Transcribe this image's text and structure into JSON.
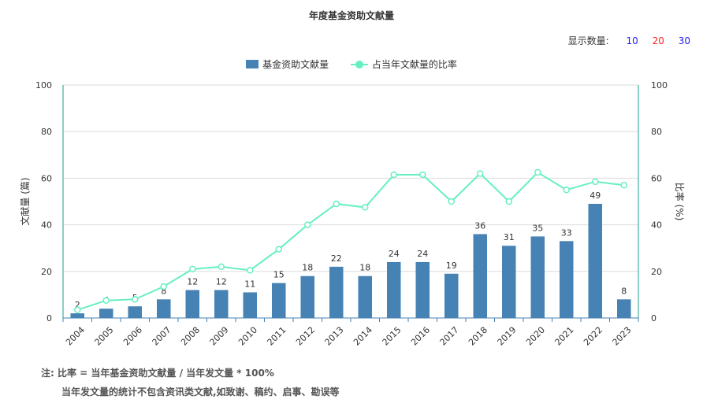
{
  "header": {
    "title": "年度基金资助文献量"
  },
  "display_count": {
    "label": "显示数量:",
    "options": [
      {
        "text": "10",
        "color": "#1a1aff"
      },
      {
        "text": "20",
        "color": "#ff2020"
      },
      {
        "text": "30",
        "color": "#1a1aff"
      }
    ]
  },
  "notes": {
    "line1": "注:  比率 = 当年基金资助文献量 / 当年发文量 * 100%",
    "line2": "当年发文量的统计不包含资讯类文献,如致谢、稿约、启事、勘误等"
  },
  "colors": {
    "bar": "#4682b4",
    "line": "#66f0c0",
    "axis_right": "#1aa38a",
    "axis_left": "#4682b4"
  },
  "chart_data": {
    "type": "bar",
    "categories": [
      "2004",
      "2005",
      "2006",
      "2007",
      "2008",
      "2009",
      "2010",
      "2011",
      "2012",
      "2013",
      "2014",
      "2015",
      "2016",
      "2017",
      "2018",
      "2019",
      "2020",
      "2021",
      "2022",
      "2023"
    ],
    "series": [
      {
        "name": "基金资助文献量",
        "type": "bar",
        "axis": "left",
        "values": [
          2,
          4,
          5,
          8,
          12,
          12,
          11,
          15,
          18,
          22,
          18,
          24,
          24,
          19,
          36,
          31,
          35,
          33,
          49,
          8
        ]
      },
      {
        "name": "占当年文献量的比率",
        "type": "line",
        "axis": "right",
        "values": [
          3.5,
          7.5,
          8,
          13.5,
          21,
          22,
          20.5,
          29.5,
          40,
          49,
          47.5,
          61.5,
          61.5,
          50,
          62,
          50,
          62.5,
          55,
          58.5,
          57
        ]
      }
    ],
    "ylabel": "文献量 (篇)",
    "y2label": "比率 (%)",
    "ylim": [
      0,
      100
    ],
    "y2lim": [
      0,
      100
    ],
    "yticks": [
      "0",
      "20",
      "40",
      "60",
      "80",
      "100"
    ],
    "y2ticks": [
      "0",
      "20",
      "40",
      "60",
      "80",
      "100"
    ],
    "grid": true,
    "legend_position": "top-center"
  }
}
